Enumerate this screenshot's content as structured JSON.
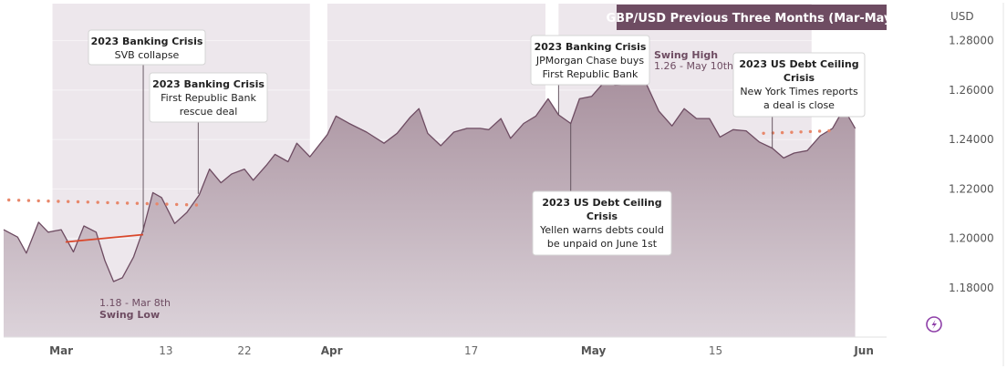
{
  "chart_data": {
    "type": "area",
    "title": "GBP/USD Previous Three Months (Mar-May)",
    "currency_label": "USD",
    "ylim": [
      1.16,
      1.295
    ],
    "y_ticks": [
      "1.28000",
      "1.26000",
      "1.24000",
      "1.22000",
      "1.20000",
      "1.18000"
    ],
    "y_tick_values": [
      1.28,
      1.26,
      1.24,
      1.22,
      1.2,
      1.18
    ],
    "x_ticks": [
      {
        "label": "Mar",
        "x": 0,
        "month": true
      },
      {
        "label": "13",
        "x": 12,
        "month": false
      },
      {
        "label": "22",
        "x": 21,
        "month": false
      },
      {
        "label": "Apr",
        "x": 31,
        "month": true
      },
      {
        "label": "17",
        "x": 47,
        "month": false
      },
      {
        "label": "May",
        "x": 61,
        "month": true
      },
      {
        "label": "15",
        "x": 75,
        "month": false
      },
      {
        "label": "Jun",
        "x": 92,
        "month": true
      }
    ],
    "xlim": [
      -6.6,
      94.6
    ],
    "colors": {
      "area_top": "#a9929f",
      "area_bottom": "#dcd3da",
      "line": "#6e4c62",
      "shade": "#ede7ec",
      "gap": "#ffffff",
      "title_bg": "#6e4c62",
      "title_text": "#ffffff",
      "dots": "#e8876a",
      "red_line": "#d9472b",
      "swing_text": "#6e4c62"
    },
    "series": [
      {
        "values": [
          {
            "x": -6.6,
            "y": 1.2035
          },
          {
            "x": -5,
            "y": 1.2005
          },
          {
            "x": -4,
            "y": 1.194
          },
          {
            "x": -2.6,
            "y": 1.2065
          },
          {
            "x": -1.5,
            "y": 1.2025
          },
          {
            "x": 0,
            "y": 1.2035
          },
          {
            "x": 1.4,
            "y": 1.1945
          },
          {
            "x": 2.6,
            "y": 1.205
          },
          {
            "x": 4,
            "y": 1.2025
          },
          {
            "x": 5,
            "y": 1.191
          },
          {
            "x": 6,
            "y": 1.1825
          },
          {
            "x": 7,
            "y": 1.184
          },
          {
            "x": 8.3,
            "y": 1.1925
          },
          {
            "x": 9.4,
            "y": 1.2035
          },
          {
            "x": 10.5,
            "y": 1.2185
          },
          {
            "x": 11.5,
            "y": 1.2165
          },
          {
            "x": 13,
            "y": 1.206
          },
          {
            "x": 14.4,
            "y": 1.2105
          },
          {
            "x": 15.8,
            "y": 1.2175
          },
          {
            "x": 17,
            "y": 1.228
          },
          {
            "x": 18.3,
            "y": 1.2225
          },
          {
            "x": 19.5,
            "y": 1.226
          },
          {
            "x": 21,
            "y": 1.228
          },
          {
            "x": 22,
            "y": 1.2235
          },
          {
            "x": 23.5,
            "y": 1.2295
          },
          {
            "x": 24.5,
            "y": 1.234
          },
          {
            "x": 26,
            "y": 1.231
          },
          {
            "x": 27,
            "y": 1.2385
          },
          {
            "x": 28.5,
            "y": 1.233
          },
          {
            "x": 30.5,
            "y": 1.242
          },
          {
            "x": 31.5,
            "y": 1.2495
          },
          {
            "x": 33,
            "y": 1.2465
          },
          {
            "x": 35,
            "y": 1.243
          },
          {
            "x": 37,
            "y": 1.2385
          },
          {
            "x": 38.5,
            "y": 1.2425
          },
          {
            "x": 40,
            "y": 1.249
          },
          {
            "x": 41,
            "y": 1.2525
          },
          {
            "x": 42,
            "y": 1.2425
          },
          {
            "x": 43.5,
            "y": 1.2375
          },
          {
            "x": 45,
            "y": 1.243
          },
          {
            "x": 46.5,
            "y": 1.2445
          },
          {
            "x": 48,
            "y": 1.2445
          },
          {
            "x": 49,
            "y": 1.244
          },
          {
            "x": 50.4,
            "y": 1.2485
          },
          {
            "x": 51.5,
            "y": 1.2405
          },
          {
            "x": 53,
            "y": 1.2465
          },
          {
            "x": 54.4,
            "y": 1.2495
          },
          {
            "x": 55.8,
            "y": 1.2565
          },
          {
            "x": 57,
            "y": 1.25
          },
          {
            "x": 58.4,
            "y": 1.2465
          },
          {
            "x": 59.4,
            "y": 1.2565
          },
          {
            "x": 60.8,
            "y": 1.2575
          },
          {
            "x": 62.3,
            "y": 1.2635
          },
          {
            "x": 63.5,
            "y": 1.262
          },
          {
            "x": 65,
            "y": 1.2625
          },
          {
            "x": 67,
            "y": 1.263
          },
          {
            "x": 68.5,
            "y": 1.2515
          },
          {
            "x": 70,
            "y": 1.2455
          },
          {
            "x": 71.4,
            "y": 1.2525
          },
          {
            "x": 72.8,
            "y": 1.2485
          },
          {
            "x": 74.3,
            "y": 1.2485
          },
          {
            "x": 75.5,
            "y": 1.241
          },
          {
            "x": 77,
            "y": 1.244
          },
          {
            "x": 78.5,
            "y": 1.2435
          },
          {
            "x": 80,
            "y": 1.239
          },
          {
            "x": 81.5,
            "y": 1.2365
          },
          {
            "x": 82.8,
            "y": 1.2325
          },
          {
            "x": 84,
            "y": 1.2345
          },
          {
            "x": 85.5,
            "y": 1.2355
          },
          {
            "x": 87,
            "y": 1.2415
          },
          {
            "x": 88.4,
            "y": 1.2445
          },
          {
            "x": 89.7,
            "y": 1.2525
          },
          {
            "x": 91,
            "y": 1.2445
          }
        ]
      }
    ],
    "shaded_periods": [
      [
        -1,
        28.5
      ],
      [
        30.5,
        55.5
      ],
      [
        57,
        86
      ]
    ],
    "dotted_lines": [
      {
        "x_start": -6,
        "x_end": 15.5,
        "y_start": 1.2155,
        "y_end": 1.2135
      },
      {
        "x_start": 80.5,
        "x_end": 88,
        "y_start": 1.2425,
        "y_end": 1.2435
      }
    ],
    "red_line": {
      "x_start": 0.5,
      "x_end": 9.4,
      "y_start": 1.1985,
      "y_end": 1.2015
    },
    "annotations": [
      {
        "title": "2023 Banking Crisis",
        "lines": [
          "SVB collapse"
        ],
        "x": 9.4,
        "y": 1.2025,
        "box_left": 97,
        "box_top": 33,
        "box_width": 128,
        "box_height": 38,
        "above": true
      },
      {
        "title": "2023 Banking Crisis",
        "lines": [
          "First Republic Bank",
          "rescue deal"
        ],
        "x": 15.7,
        "y": 1.218,
        "box_left": 164,
        "box_top": 80,
        "box_width": 129,
        "box_height": 54,
        "above": true
      },
      {
        "title": "2023 Banking Crisis",
        "lines": [
          "JPMorgan Chase buys",
          "First Republic Bank"
        ],
        "x": 57.0,
        "y": 1.25,
        "box_left": 582,
        "box_top": 39,
        "box_width": 130,
        "box_height": 54,
        "above": true
      },
      {
        "title": "2023 US Debt Ceiling",
        "lines": [
          "Crisis",
          "Yellen warns debts could",
          "be unpaid on June 1st"
        ],
        "x": 58.4,
        "y": 1.2465,
        "box_left": 584,
        "box_top": 210,
        "box_width": 152,
        "box_height": 70,
        "above": false
      },
      {
        "title": "2023 US Debt Ceiling",
        "lines": [
          "Crisis",
          "New York Times reports",
          "a deal is close"
        ],
        "x": 81.5,
        "y": 1.2365,
        "box_left": 804,
        "box_top": 58,
        "box_width": 144,
        "box_height": 70,
        "above": true
      }
    ],
    "swing_high": {
      "label": "Swing High",
      "value": "1.26 - May 10th"
    },
    "swing_low": {
      "value": "1.18 - Mar 8th",
      "label": "Swing Low"
    }
  }
}
